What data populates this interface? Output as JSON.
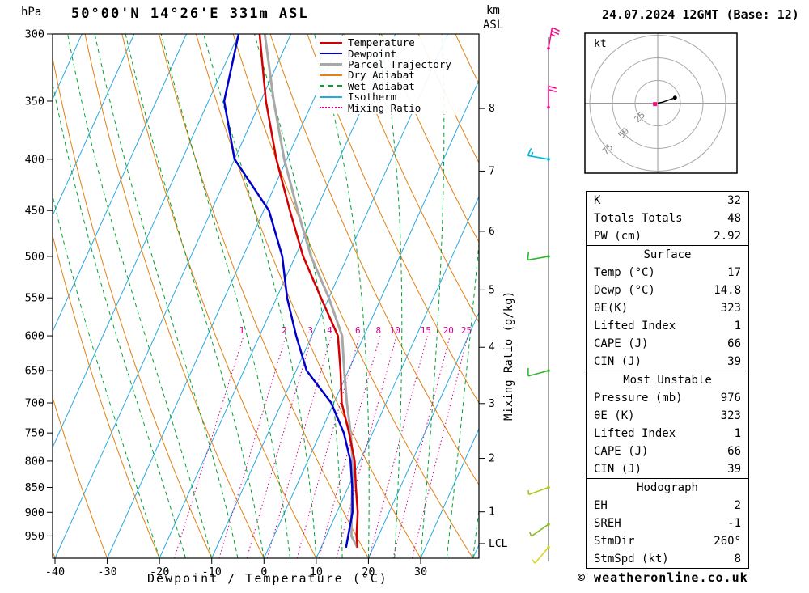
{
  "header": {
    "pressure_unit": "hPa",
    "title": "50°00'N 14°26'E 331m ASL",
    "altitude_unit_line1": "km",
    "altitude_unit_line2": "ASL",
    "datetime": "24.07.2024 12GMT (Base: 12)"
  },
  "footer": {
    "copyright": "© weatheronline.co.uk"
  },
  "chart_data": {
    "type": "skewt-log-p",
    "title": "50°00'N 14°26'E 331m ASL",
    "xlabel": "Dewpoint / Temperature (°C)",
    "pressure_axis_unit": "hPa",
    "pressure_range": [
      300,
      1000
    ],
    "pressure_ticks": [
      300,
      350,
      400,
      450,
      500,
      550,
      600,
      650,
      700,
      750,
      800,
      850,
      900,
      950
    ],
    "temp_ticks": [
      -40,
      -30,
      -20,
      -10,
      0,
      10,
      20,
      30
    ],
    "km_ticks": [
      8,
      7,
      6,
      5,
      4,
      3,
      2,
      1
    ],
    "km_tick_pressures": [
      356,
      411,
      472,
      540,
      616,
      701,
      795,
      899
    ],
    "lcl_label": "LCL",
    "lcl_pressure": 967,
    "mixing_ratio_axis_label": "Mixing Ratio (g/kg)",
    "mixing_ratio_values": [
      1,
      2,
      3,
      4,
      6,
      8,
      10,
      15,
      20,
      25
    ],
    "isotherm_step": 10,
    "colors": {
      "temperature": "#d40000",
      "dewpoint": "#0000c8",
      "parcel": "#a8a8a8",
      "dry_adiabat": "#e08214",
      "wet_adiabat": "#00a330",
      "isotherm": "#29a8e0",
      "mixing_ratio": "#d4008c",
      "axis": "#000000"
    },
    "legend": [
      {
        "label": "Temperature",
        "color": "#d40000",
        "style": "solid",
        "width": 2
      },
      {
        "label": "Dewpoint",
        "color": "#0000c8",
        "style": "solid",
        "width": 2
      },
      {
        "label": "Parcel Trajectory",
        "color": "#a8a8a8",
        "style": "solid",
        "width": 3
      },
      {
        "label": "Dry Adiabat",
        "color": "#e08214",
        "style": "solid",
        "width": 2
      },
      {
        "label": "Wet Adiabat",
        "color": "#00a330",
        "style": "dashed",
        "width": 2
      },
      {
        "label": "Isotherm",
        "color": "#29a8e0",
        "style": "solid",
        "width": 2
      },
      {
        "label": "Mixing Ratio",
        "color": "#d4008c",
        "style": "dotted",
        "width": 2
      }
    ],
    "sounding": {
      "pressure": [
        976,
        950,
        900,
        850,
        800,
        750,
        700,
        650,
        600,
        550,
        500,
        450,
        400,
        350,
        300
      ],
      "temperature": [
        17,
        15.8,
        14,
        11.5,
        9,
        5.5,
        1.5,
        -1.5,
        -5,
        -11.5,
        -18.5,
        -25,
        -32,
        -39,
        -46
      ],
      "dewpoint": [
        14.8,
        14.2,
        13,
        10.8,
        8.2,
        4.5,
        -0.5,
        -8,
        -13,
        -18,
        -22.5,
        -29,
        -40,
        -47,
        -50
      ],
      "parcel": [
        17,
        14.8,
        12.8,
        10.8,
        8.6,
        5.8,
        2.5,
        -0.8,
        -4.2,
        -10,
        -17,
        -23.5,
        -30.5,
        -37.5,
        -45
      ]
    }
  },
  "wind_barbs": [
    {
      "pressure": 310,
      "speed_kt": 25,
      "dir_deg": 10,
      "color": "#f0128c"
    },
    {
      "pressure": 355,
      "speed_kt": 20,
      "dir_deg": 0,
      "color": "#f0128c"
    },
    {
      "pressure": 400,
      "speed_kt": 15,
      "dir_deg": 280,
      "color": "#00b8d9"
    },
    {
      "pressure": 500,
      "speed_kt": 12,
      "dir_deg": 260,
      "color": "#2eb82e"
    },
    {
      "pressure": 650,
      "speed_kt": 10,
      "dir_deg": 255,
      "color": "#2eb82e"
    },
    {
      "pressure": 850,
      "speed_kt": 8,
      "dir_deg": 250,
      "color": "#a8cc1e"
    },
    {
      "pressure": 925,
      "speed_kt": 6,
      "dir_deg": 235,
      "color": "#8abb22"
    },
    {
      "pressure": 975,
      "speed_kt": 5,
      "dir_deg": 220,
      "color": "#d6d61e"
    }
  ],
  "hodograph": {
    "unit_label": "kt",
    "rings_kt": [
      25,
      50,
      75
    ],
    "trace_uv_kt": [
      [
        0,
        0
      ],
      [
        5,
        1
      ],
      [
        11,
        3
      ],
      [
        19,
        6
      ]
    ],
    "end_dot_uv_kt": [
      19,
      6
    ],
    "storm_marker_uv_kt": [
      -3,
      -1
    ],
    "storm_dir_deg": 260,
    "storm_speed_kt": 8
  },
  "table": {
    "sections": [
      {
        "rows": [
          [
            "K",
            "32"
          ],
          [
            "Totals Totals",
            "48"
          ],
          [
            "PW (cm)",
            "2.92"
          ]
        ]
      },
      {
        "header": "Surface",
        "rows": [
          [
            "Temp (°C)",
            "17"
          ],
          [
            "Dewp (°C)",
            "14.8"
          ],
          [
            "θE(K)",
            "323"
          ],
          [
            "Lifted Index",
            "1"
          ],
          [
            "CAPE (J)",
            "66"
          ],
          [
            "CIN (J)",
            "39"
          ]
        ]
      },
      {
        "header": "Most Unstable",
        "rows": [
          [
            "Pressure (mb)",
            "976"
          ],
          [
            "θE (K)",
            "323"
          ],
          [
            "Lifted Index",
            "1"
          ],
          [
            "CAPE (J)",
            "66"
          ],
          [
            "CIN (J)",
            "39"
          ]
        ]
      },
      {
        "header": "Hodograph",
        "rows": [
          [
            "EH",
            "2"
          ],
          [
            "SREH",
            "-1"
          ],
          [
            "StmDir",
            "260°"
          ],
          [
            "StmSpd (kt)",
            "8"
          ]
        ]
      }
    ]
  }
}
